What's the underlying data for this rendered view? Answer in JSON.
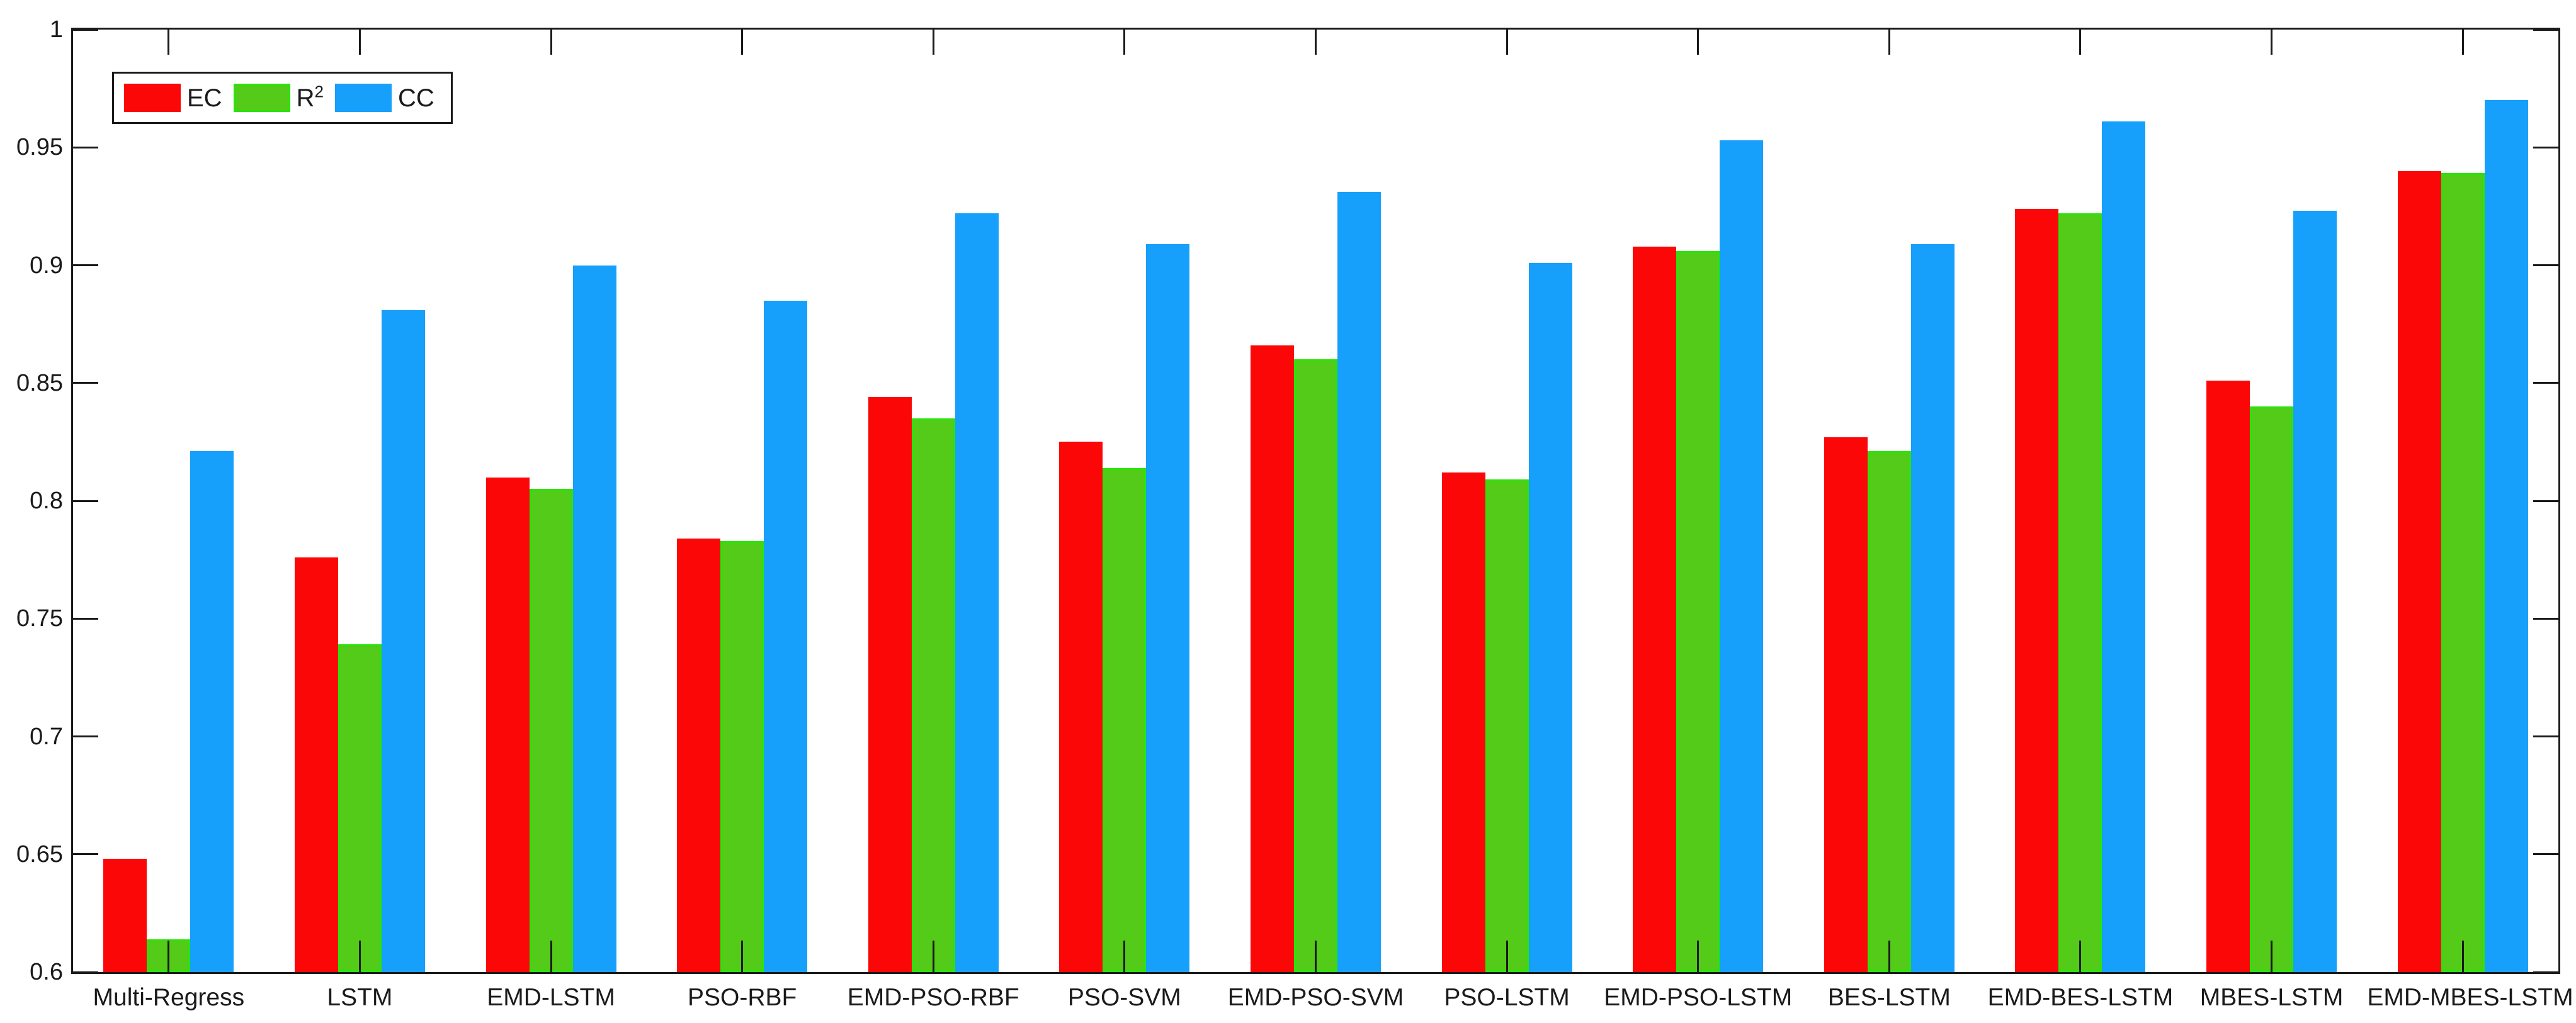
{
  "chart_data": {
    "type": "bar",
    "title": "",
    "xlabel": "",
    "ylabel": "",
    "grid": false,
    "background": "#ffffff",
    "axis_color": "#1a1a1a",
    "categories": [
      "Multi-Regress",
      "LSTM",
      "EMD-LSTM",
      "PSO-RBF",
      "EMD-PSO-RBF",
      "PSO-SVM",
      "EMD-PSO-SVM",
      "PSO-LSTM",
      "EMD-PSO-LSTM",
      "BES-LSTM",
      "EMD-BES-LSTM",
      "MBES-LSTM",
      "EMD-MBES-LSTM"
    ],
    "series": [
      {
        "name": "EC",
        "color": "#fb0707",
        "values": [
          0.648,
          0.776,
          0.81,
          0.784,
          0.844,
          0.825,
          0.866,
          0.812,
          0.908,
          0.827,
          0.924,
          0.851,
          0.94
        ]
      },
      {
        "name": "R²",
        "color": "#53cb18",
        "edge_color": "#2be30b",
        "values": [
          0.614,
          0.739,
          0.805,
          0.783,
          0.835,
          0.814,
          0.86,
          0.809,
          0.906,
          0.821,
          0.922,
          0.84,
          0.939
        ]
      },
      {
        "name": "CC",
        "color": "#17a0fb",
        "values": [
          0.821,
          0.881,
          0.9,
          0.885,
          0.922,
          0.909,
          0.931,
          0.901,
          0.953,
          0.909,
          0.961,
          0.923,
          0.97
        ]
      }
    ],
    "ylim": [
      0.6,
      1.0
    ],
    "yticks": {
      "values": [
        0.6,
        0.65,
        0.7,
        0.75,
        0.8,
        0.85,
        0.9,
        0.95,
        1.0
      ],
      "labels": [
        "0.6",
        "0.65",
        "0.7",
        "0.75",
        "0.8",
        "0.85",
        "0.9",
        "0.95",
        "1"
      ]
    },
    "legend": {
      "position": "top-left",
      "labels": [
        {
          "text": "EC",
          "sup": ""
        },
        {
          "text": "R",
          "sup": "2"
        },
        {
          "text": "CC",
          "sup": ""
        }
      ]
    }
  }
}
